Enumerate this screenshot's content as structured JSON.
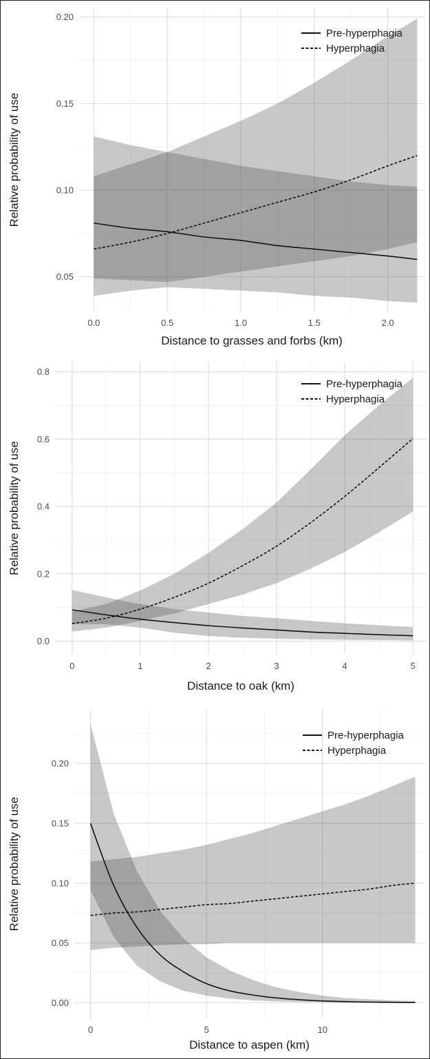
{
  "chart_data": [
    {
      "type": "line",
      "xlabel": "Distance to grasses and forbs (km)",
      "ylabel": "Relative probability of use",
      "xlim": [
        -0.1,
        2.25
      ],
      "ylim": [
        0.03,
        0.205
      ],
      "xticks": [
        0.0,
        0.5,
        1.0,
        1.5,
        2.0
      ],
      "xtick_labels": [
        "0.0",
        "0.5",
        "1.0",
        "1.5",
        "2.0"
      ],
      "yticks": [
        0.05,
        0.1,
        0.15,
        0.2
      ],
      "ytick_labels": [
        "0.05",
        "0.10",
        "0.15",
        "0.20"
      ],
      "legend_position": "top-right",
      "grid": true,
      "series": [
        {
          "name": "Pre-hyperphagia",
          "style": "solid",
          "x": [
            0.0,
            0.25,
            0.5,
            0.75,
            1.0,
            1.25,
            1.5,
            1.75,
            2.0,
            2.2
          ],
          "y": [
            0.081,
            0.078,
            0.076,
            0.073,
            0.071,
            0.068,
            0.066,
            0.064,
            0.062,
            0.06
          ],
          "lower": [
            0.049,
            0.048,
            0.047,
            0.05,
            0.053,
            0.056,
            0.059,
            0.062,
            0.066,
            0.07
          ],
          "upper": [
            0.131,
            0.126,
            0.122,
            0.118,
            0.114,
            0.111,
            0.108,
            0.105,
            0.103,
            0.102
          ]
        },
        {
          "name": "Hyperphagia",
          "style": "dashed",
          "x": [
            0.0,
            0.25,
            0.5,
            0.75,
            1.0,
            1.25,
            1.5,
            1.75,
            2.0,
            2.2
          ],
          "y": [
            0.066,
            0.07,
            0.075,
            0.081,
            0.087,
            0.093,
            0.099,
            0.106,
            0.114,
            0.12
          ],
          "lower": [
            0.039,
            0.042,
            0.044,
            0.043,
            0.042,
            0.041,
            0.039,
            0.038,
            0.036,
            0.035
          ],
          "upper": [
            0.108,
            0.115,
            0.122,
            0.131,
            0.14,
            0.15,
            0.162,
            0.175,
            0.189,
            0.199
          ]
        }
      ]
    },
    {
      "type": "line",
      "xlabel": "Distance to oak (km)",
      "ylabel": "Relative probability of use",
      "xlim": [
        -0.25,
        5.2
      ],
      "ylim": [
        -0.04,
        0.83
      ],
      "xticks": [
        0,
        1,
        2,
        3,
        4,
        5
      ],
      "xtick_labels": [
        "0",
        "1",
        "2",
        "3",
        "4",
        "5"
      ],
      "yticks": [
        0.0,
        0.2,
        0.4,
        0.6,
        0.8
      ],
      "ytick_labels": [
        "0.0",
        "0.2",
        "0.4",
        "0.6",
        "0.8"
      ],
      "legend_position": "top-right",
      "grid": true,
      "series": [
        {
          "name": "Pre-hyperphagia",
          "style": "solid",
          "x": [
            0.0,
            0.5,
            1.0,
            1.5,
            2.0,
            2.5,
            3.0,
            3.5,
            4.0,
            4.5,
            5.0
          ],
          "y": [
            0.093,
            0.078,
            0.065,
            0.055,
            0.046,
            0.039,
            0.033,
            0.027,
            0.023,
            0.019,
            0.016
          ],
          "lower": [
            0.05,
            0.05,
            0.04,
            0.025,
            0.015,
            0.01,
            0.007,
            0.005,
            0.004,
            0.003,
            0.002
          ],
          "upper": [
            0.152,
            0.13,
            0.11,
            0.095,
            0.085,
            0.075,
            0.068,
            0.06,
            0.053,
            0.047,
            0.042
          ]
        },
        {
          "name": "Hyperphagia",
          "style": "dashed",
          "x": [
            0.0,
            0.5,
            1.0,
            1.5,
            2.0,
            2.5,
            3.0,
            3.5,
            4.0,
            4.5,
            5.0
          ],
          "y": [
            0.052,
            0.068,
            0.095,
            0.13,
            0.172,
            0.224,
            0.282,
            0.352,
            0.43,
            0.515,
            0.602
          ],
          "lower": [
            0.028,
            0.04,
            0.06,
            0.082,
            0.11,
            0.138,
            0.172,
            0.215,
            0.265,
            0.323,
            0.385
          ],
          "upper": [
            0.088,
            0.11,
            0.15,
            0.2,
            0.262,
            0.332,
            0.412,
            0.51,
            0.612,
            0.7,
            0.782
          ]
        }
      ]
    },
    {
      "type": "line",
      "xlabel": "Distance to aspen (km)",
      "ylabel": "Relative probability of use",
      "xlim": [
        -0.7,
        14.4
      ],
      "ylim": [
        -0.013,
        0.245
      ],
      "xticks": [
        0,
        5,
        10
      ],
      "xtick_labels": [
        "0",
        "5",
        "10"
      ],
      "yticks": [
        0.0,
        0.05,
        0.1,
        0.15,
        0.2
      ],
      "ytick_labels": [
        "0.00",
        "0.05",
        "0.10",
        "0.15",
        "0.20"
      ],
      "legend_position": "top-right",
      "grid": true,
      "series": [
        {
          "name": "Pre-hyperphagia",
          "style": "solid",
          "x": [
            0,
            1,
            2,
            3,
            4,
            5,
            6,
            7,
            8,
            9,
            10,
            11,
            12,
            13,
            14
          ],
          "y": [
            0.15,
            0.098,
            0.063,
            0.04,
            0.026,
            0.016,
            0.01,
            0.0065,
            0.0041,
            0.0026,
            0.0016,
            0.001,
            0.0006,
            0.0004,
            0.0003
          ],
          "lower": [
            0.094,
            0.055,
            0.031,
            0.018,
            0.01,
            0.006,
            0.0035,
            0.002,
            0.0012,
            0.0007,
            0.0004,
            0.0002,
            0.0001,
            0.0001,
            0.0
          ],
          "upper": [
            0.233,
            0.158,
            0.11,
            0.077,
            0.054,
            0.038,
            0.027,
            0.019,
            0.013,
            0.009,
            0.006,
            0.004,
            0.003,
            0.002,
            0.0015
          ]
        },
        {
          "name": "Hyperphagia",
          "style": "dashed",
          "x": [
            0,
            1,
            2,
            3,
            4,
            5,
            6,
            7,
            8,
            9,
            10,
            11,
            12,
            13,
            14
          ],
          "y": [
            0.073,
            0.075,
            0.076,
            0.078,
            0.08,
            0.082,
            0.083,
            0.085,
            0.087,
            0.089,
            0.091,
            0.093,
            0.095,
            0.098,
            0.1
          ],
          "lower": [
            0.044,
            0.046,
            0.047,
            0.048,
            0.049,
            0.049,
            0.05,
            0.05,
            0.05,
            0.05,
            0.05,
            0.05,
            0.05,
            0.05,
            0.05
          ],
          "upper": [
            0.118,
            0.12,
            0.122,
            0.125,
            0.128,
            0.132,
            0.137,
            0.142,
            0.148,
            0.154,
            0.16,
            0.166,
            0.173,
            0.181,
            0.189
          ]
        }
      ]
    }
  ]
}
